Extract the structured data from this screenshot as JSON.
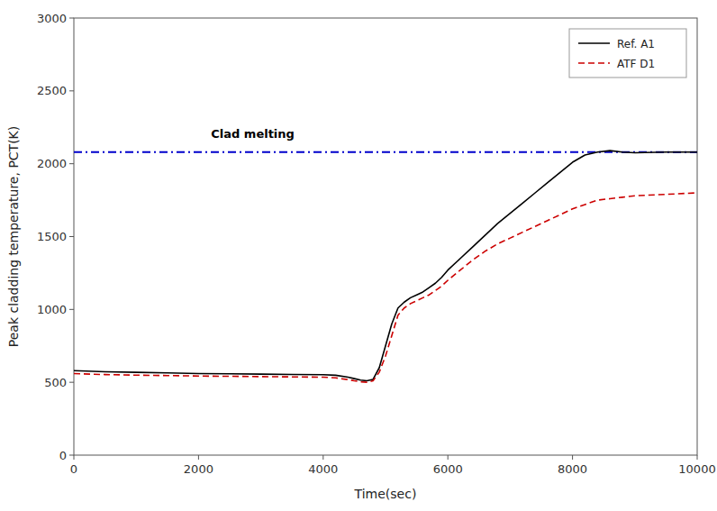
{
  "chart_data": {
    "type": "line",
    "xlabel": "Time(sec)",
    "ylabel": "Peak cladding temperature, PCT(K)",
    "xlim": [
      0,
      10000
    ],
    "ylim": [
      0,
      3000
    ],
    "xticks": [
      0,
      2000,
      4000,
      6000,
      8000,
      10000
    ],
    "yticks": [
      0,
      500,
      1000,
      1500,
      2000,
      2500,
      3000
    ],
    "grid": false,
    "legend": "upper right",
    "x": [
      0,
      100,
      500,
      1000,
      1500,
      2000,
      2500,
      3000,
      3500,
      4000,
      4200,
      4400,
      4500,
      4600,
      4700,
      4800,
      4900,
      5000,
      5100,
      5200,
      5300,
      5400,
      5500,
      5600,
      5700,
      5800,
      5900,
      6000,
      6200,
      6400,
      6600,
      6800,
      7000,
      7200,
      7400,
      7600,
      7800,
      8000,
      8200,
      8400,
      8600,
      8800,
      9000,
      9500,
      10000
    ],
    "series": [
      {
        "name": "Ref. A1",
        "color": "#000000",
        "line_style": "solid",
        "values": [
          580,
          578,
          572,
          568,
          564,
          560,
          558,
          556,
          554,
          552,
          548,
          535,
          525,
          515,
          510,
          520,
          600,
          750,
          900,
          1010,
          1050,
          1080,
          1100,
          1120,
          1150,
          1180,
          1220,
          1270,
          1350,
          1430,
          1510,
          1590,
          1660,
          1730,
          1800,
          1870,
          1940,
          2010,
          2060,
          2080,
          2090,
          2080,
          2075,
          2080,
          2080
        ]
      },
      {
        "name": "ATF D1",
        "color": "#CC0000",
        "line_style": "dashed",
        "values": [
          560,
          558,
          553,
          549,
          546,
          543,
          541,
          539,
          537,
          535,
          530,
          518,
          510,
          503,
          500,
          510,
          570,
          680,
          820,
          960,
          1010,
          1040,
          1060,
          1080,
          1100,
          1130,
          1160,
          1200,
          1270,
          1340,
          1400,
          1450,
          1490,
          1530,
          1570,
          1610,
          1650,
          1690,
          1720,
          1750,
          1760,
          1770,
          1780,
          1790,
          1800
        ]
      }
    ],
    "reference_lines": [
      {
        "y": 2080,
        "color": "#0000CC",
        "line_style": "dashdot"
      }
    ],
    "annotations": [
      {
        "text": "Clad melting",
        "x": 2200,
        "y": 2180
      }
    ]
  }
}
